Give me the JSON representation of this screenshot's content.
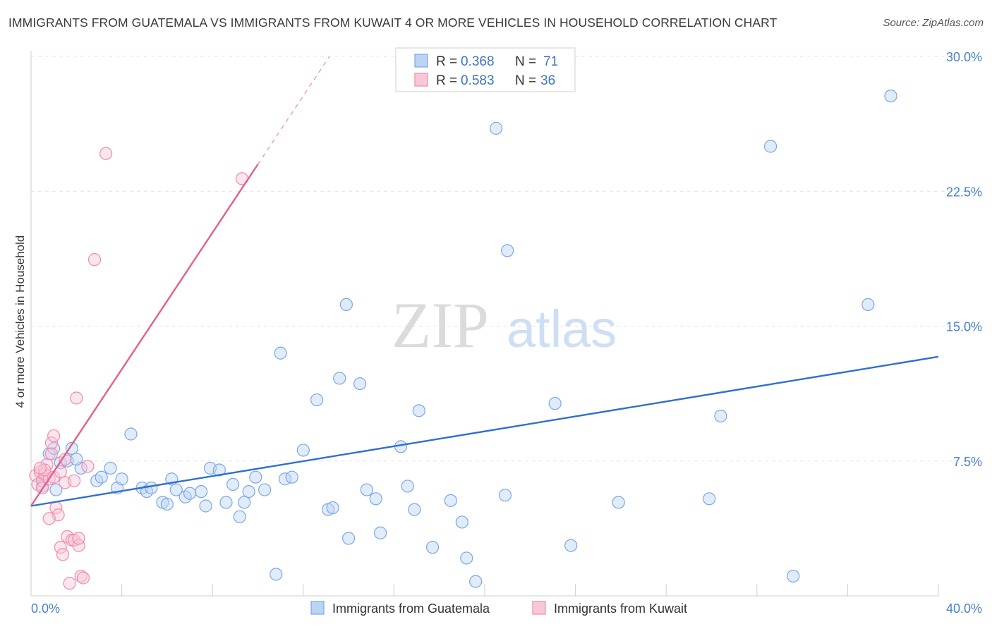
{
  "header": {
    "title": "IMMIGRANTS FROM GUATEMALA VS IMMIGRANTS FROM KUWAIT 4 OR MORE VEHICLES IN HOUSEHOLD CORRELATION CHART",
    "source": "Source: ZipAtlas.com"
  },
  "watermark": {
    "zip": "ZIP",
    "atlas": "atlas"
  },
  "legend": {
    "rows": [
      {
        "r_label": "R = ",
        "r_value": "0.368",
        "n_label": "N = ",
        "n_value": "71"
      },
      {
        "r_label": "R = ",
        "r_value": "0.583",
        "n_label": "N = ",
        "n_value": "36"
      }
    ]
  },
  "chart_data": {
    "type": "scatter",
    "ylabel": "4 or more Vehicles in Household",
    "xlim": [
      0,
      40
    ],
    "ylim": [
      0,
      30
    ],
    "x_tick_labels": {
      "min": "0.0%",
      "max": "40.0%"
    },
    "y_tick_labels": [
      "7.5%",
      "15.0%",
      "22.5%",
      "30.0%"
    ],
    "y_ticks": [
      7.5,
      15,
      22.5,
      30
    ],
    "grid": true,
    "colors": {
      "guatemala": "#7aa6e6",
      "kuwait": "#f08aaa",
      "guatemala_line": "#2f6fd0",
      "kuwait_line": "#e0608a"
    },
    "series": [
      {
        "name": "Immigrants from Guatemala",
        "trend": {
          "x0": 0,
          "y0": 5.0,
          "x1": 40,
          "y1": 13.3
        },
        "points": [
          [
            0.5,
            6.1
          ],
          [
            0.8,
            7.9
          ],
          [
            1.0,
            8.2
          ],
          [
            1.3,
            7.4
          ],
          [
            1.6,
            7.5
          ],
          [
            1.8,
            8.2
          ],
          [
            2.2,
            7.1
          ],
          [
            2.9,
            6.4
          ],
          [
            3.1,
            6.6
          ],
          [
            3.5,
            7.1
          ],
          [
            3.8,
            6.0
          ],
          [
            4.0,
            6.5
          ],
          [
            4.4,
            9.0
          ],
          [
            4.9,
            6.0
          ],
          [
            5.1,
            5.8
          ],
          [
            5.3,
            6.0
          ],
          [
            5.8,
            5.2
          ],
          [
            6.0,
            5.1
          ],
          [
            6.2,
            6.5
          ],
          [
            6.4,
            5.9
          ],
          [
            6.8,
            5.5
          ],
          [
            7.0,
            5.7
          ],
          [
            7.5,
            5.8
          ],
          [
            7.7,
            5.0
          ],
          [
            7.9,
            7.1
          ],
          [
            8.3,
            7.0
          ],
          [
            8.6,
            5.2
          ],
          [
            8.9,
            6.2
          ],
          [
            9.2,
            4.4
          ],
          [
            9.4,
            5.2
          ],
          [
            9.6,
            5.8
          ],
          [
            9.9,
            6.6
          ],
          [
            10.3,
            5.9
          ],
          [
            10.8,
            1.2
          ],
          [
            11.0,
            13.5
          ],
          [
            11.2,
            6.5
          ],
          [
            11.5,
            6.6
          ],
          [
            12.0,
            8.1
          ],
          [
            12.6,
            10.9
          ],
          [
            13.1,
            4.8
          ],
          [
            13.3,
            4.9
          ],
          [
            13.6,
            12.1
          ],
          [
            13.9,
            16.2
          ],
          [
            14.0,
            3.2
          ],
          [
            14.5,
            11.8
          ],
          [
            14.8,
            5.9
          ],
          [
            15.2,
            5.4
          ],
          [
            15.4,
            3.5
          ],
          [
            16.3,
            8.3
          ],
          [
            16.6,
            6.1
          ],
          [
            16.9,
            4.8
          ],
          [
            17.1,
            10.3
          ],
          [
            17.7,
            2.7
          ],
          [
            18.5,
            5.3
          ],
          [
            19.0,
            4.1
          ],
          [
            19.2,
            2.1
          ],
          [
            19.6,
            0.8
          ],
          [
            20.5,
            26.0
          ],
          [
            20.9,
            5.6
          ],
          [
            21.0,
            19.2
          ],
          [
            23.1,
            10.7
          ],
          [
            23.8,
            2.8
          ],
          [
            25.9,
            5.2
          ],
          [
            29.9,
            5.4
          ],
          [
            30.4,
            10.0
          ],
          [
            32.6,
            25.0
          ],
          [
            33.6,
            1.1
          ],
          [
            36.9,
            16.2
          ],
          [
            37.9,
            27.8
          ],
          [
            1.1,
            5.9
          ],
          [
            2.0,
            7.6
          ]
        ]
      },
      {
        "name": "Immigrants from Kuwait",
        "trend": {
          "x0": 0,
          "y0": 5.0,
          "x1": 10.0,
          "y1": 24.0
        },
        "points": [
          [
            0.2,
            6.7
          ],
          [
            0.3,
            6.2
          ],
          [
            0.4,
            6.9
          ],
          [
            0.5,
            6.4
          ],
          [
            0.6,
            6.8
          ],
          [
            0.7,
            7.3
          ],
          [
            0.8,
            6.5
          ],
          [
            0.9,
            8.5
          ],
          [
            1.0,
            8.9
          ],
          [
            1.1,
            4.9
          ],
          [
            1.2,
            4.5
          ],
          [
            1.3,
            2.7
          ],
          [
            1.4,
            2.3
          ],
          [
            1.5,
            6.3
          ],
          [
            1.6,
            3.3
          ],
          [
            1.7,
            0.7
          ],
          [
            1.8,
            3.1
          ],
          [
            1.9,
            3.1
          ],
          [
            2.0,
            11.0
          ],
          [
            2.1,
            2.8
          ],
          [
            2.2,
            1.1
          ],
          [
            2.3,
            1.0
          ],
          [
            2.5,
            7.2
          ],
          [
            2.8,
            18.7
          ],
          [
            3.3,
            24.6
          ],
          [
            9.3,
            23.2
          ],
          [
            0.6,
            7.0
          ],
          [
            0.9,
            7.9
          ],
          [
            1.0,
            6.6
          ],
          [
            1.3,
            6.9
          ],
          [
            0.4,
            7.1
          ],
          [
            0.8,
            4.3
          ],
          [
            1.9,
            6.4
          ],
          [
            1.5,
            7.6
          ],
          [
            0.5,
            6.0
          ],
          [
            2.1,
            3.2
          ]
        ]
      }
    ]
  }
}
